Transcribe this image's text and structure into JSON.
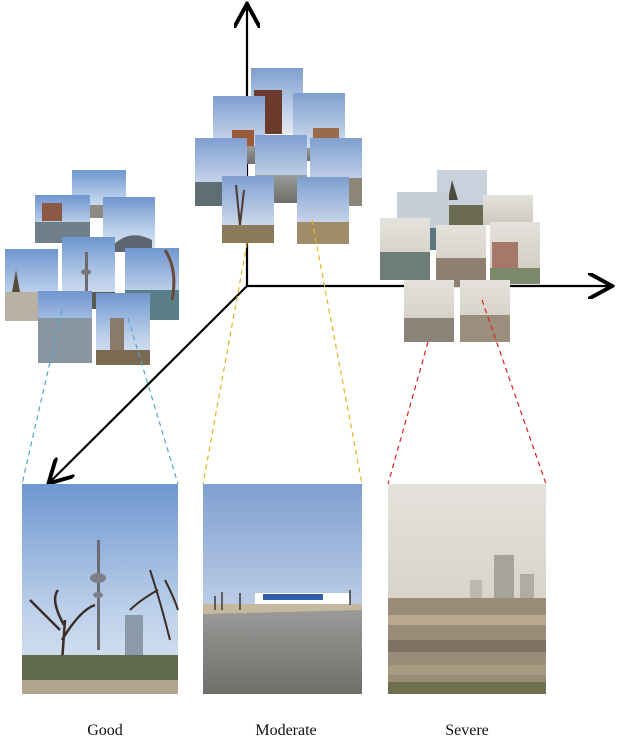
{
  "captions": {
    "good": "Good",
    "moderate": "Moderate",
    "severe": "Severe"
  },
  "colors": {
    "axis": "#000000",
    "good_connector": "#4fa6c8",
    "moderate_connector": "#e8b21a",
    "severe_connector": "#e02020"
  }
}
